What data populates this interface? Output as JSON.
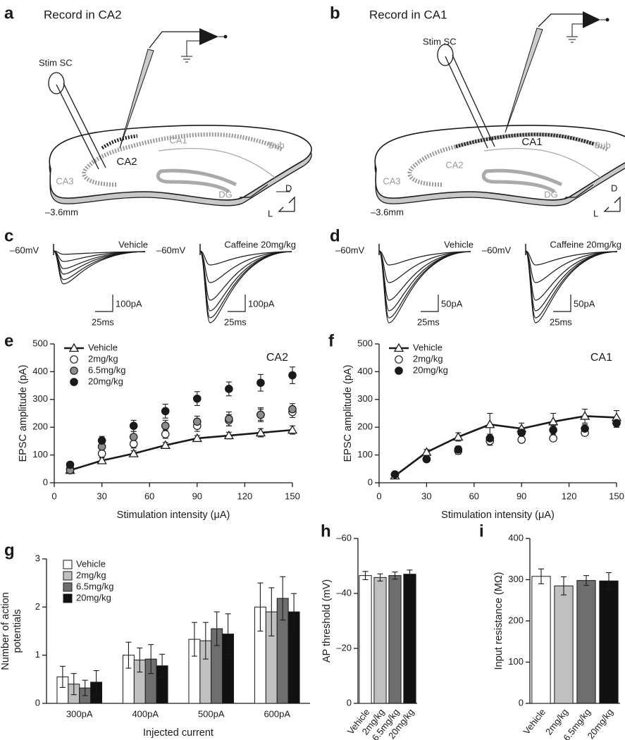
{
  "diagrams": [
    {
      "label": "a",
      "title": "Record in CA2",
      "stim": "Stim SC",
      "regions": [
        "CA1",
        "Sub",
        "CA2",
        "CA3",
        "DG"
      ],
      "axes": [
        "D",
        "L"
      ],
      "depth": "–3.6mm"
    },
    {
      "label": "b",
      "title": "Record in CA1",
      "stim": "Stim SC",
      "regions": [
        "CA1",
        "Sub",
        "CA2",
        "CA3",
        "DG"
      ],
      "axes": [
        "D",
        "L"
      ],
      "depth": "–3.6mm"
    }
  ],
  "traces": [
    {
      "label": "c",
      "left": {
        "potential": "–60mV",
        "condition": "Vehicle",
        "current_scale": "100pA",
        "time_scale": "25ms"
      },
      "right": {
        "potential": "–60mV",
        "condition": "Caffeine 20mg/kg",
        "current_scale": "100pA",
        "time_scale": "25ms"
      }
    },
    {
      "label": "d",
      "left": {
        "potential": "–60mV",
        "condition": "Vehicle",
        "current_scale": "50pA",
        "time_scale": "25ms"
      },
      "right": {
        "potential": "–60mV",
        "condition": "Caffeine 20mg/kg",
        "current_scale": "50pA",
        "time_scale": "25ms"
      }
    }
  ],
  "chart_data": [
    {
      "type": "scatter",
      "label": "e",
      "annotation": "CA2",
      "xlabel": "Stimulation intensity (μA)",
      "ylabel": "EPSC amplitude (pA)",
      "x": [
        10,
        30,
        50,
        70,
        90,
        110,
        130,
        150
      ],
      "xlim": [
        0,
        150
      ],
      "xticks": [
        0,
        30,
        60,
        90,
        120,
        150
      ],
      "ylim": [
        0,
        500
      ],
      "yticks": [
        0,
        100,
        200,
        300,
        400,
        500
      ],
      "series": [
        {
          "name": "Vehicle",
          "marker": "triangle",
          "color": "#ffffff",
          "line": true,
          "values": [
            45,
            80,
            105,
            135,
            160,
            170,
            180,
            190
          ],
          "errors": [
            5,
            10,
            10,
            10,
            10,
            12,
            15,
            15
          ]
        },
        {
          "name": "2mg/kg",
          "marker": "circle",
          "color": "#ffffff",
          "values": [
            50,
            105,
            140,
            175,
            205,
            225,
            245,
            255
          ],
          "errors": [
            5,
            15,
            15,
            15,
            20,
            20,
            20,
            20
          ]
        },
        {
          "name": "6.5mg/kg",
          "marker": "circle",
          "color": "#8c8c8c",
          "values": [
            45,
            130,
            165,
            205,
            220,
            230,
            245,
            265
          ],
          "errors": [
            5,
            15,
            20,
            20,
            20,
            25,
            25,
            20
          ]
        },
        {
          "name": "20mg/kg",
          "marker": "circle",
          "color": "#1a1a1a",
          "values": [
            65,
            152,
            205,
            258,
            303,
            338,
            360,
            387
          ],
          "errors": [
            5,
            15,
            20,
            25,
            25,
            25,
            30,
            30
          ]
        }
      ]
    },
    {
      "type": "scatter",
      "label": "f",
      "annotation": "CA1",
      "xlabel": "Stimulation intensity (μA)",
      "ylabel": "EPSC amplitude (pA)",
      "x": [
        10,
        30,
        50,
        70,
        90,
        110,
        130,
        150
      ],
      "xlim": [
        0,
        150
      ],
      "xticks": [
        0,
        30,
        60,
        90,
        120,
        150
      ],
      "ylim": [
        0,
        500
      ],
      "yticks": [
        0,
        100,
        200,
        300,
        400,
        500
      ],
      "series": [
        {
          "name": "Vehicle",
          "marker": "triangle",
          "color": "#ffffff",
          "line": true,
          "values": [
            25,
            110,
            165,
            210,
            195,
            220,
            240,
            235
          ],
          "errors": [
            8,
            10,
            15,
            40,
            20,
            30,
            25,
            25
          ]
        },
        {
          "name": "2mg/kg",
          "marker": "circle",
          "color": "#ffffff",
          "values": [
            30,
            85,
            115,
            150,
            155,
            160,
            180,
            215
          ],
          "errors": [
            5,
            10,
            12,
            15,
            10,
            10,
            10,
            15
          ]
        },
        {
          "name": "20mg/kg",
          "marker": "circle",
          "color": "#1a1a1a",
          "values": [
            30,
            85,
            120,
            160,
            180,
            190,
            195,
            215
          ],
          "errors": [
            5,
            10,
            12,
            15,
            15,
            15,
            15,
            15
          ]
        }
      ]
    },
    {
      "type": "bar",
      "label": "g",
      "xlabel": "Injected current",
      "ylabel": "Number of action potentials",
      "categories": [
        "300pA",
        "400pA",
        "500pA",
        "600pA"
      ],
      "ylim": [
        0,
        3
      ],
      "yticks": [
        0,
        1,
        2,
        3
      ],
      "series": [
        {
          "name": "Vehicle",
          "color": "#ffffff",
          "values": [
            0.55,
            1.0,
            1.33,
            2.0
          ],
          "errors": [
            0.22,
            0.27,
            0.35,
            0.5
          ]
        },
        {
          "name": "2mg/kg",
          "color": "#c0c0c0",
          "values": [
            0.4,
            0.9,
            1.3,
            1.9
          ],
          "errors": [
            0.22,
            0.25,
            0.38,
            0.5
          ]
        },
        {
          "name": "6.5mg/kg",
          "color": "#6e6e6e",
          "values": [
            0.32,
            0.92,
            1.55,
            2.18
          ],
          "errors": [
            0.16,
            0.3,
            0.35,
            0.45
          ]
        },
        {
          "name": "20mg/kg",
          "color": "#111111",
          "values": [
            0.44,
            0.78,
            1.44,
            1.9
          ],
          "errors": [
            0.24,
            0.24,
            0.42,
            0.38
          ]
        }
      ]
    },
    {
      "type": "bar",
      "label": "h",
      "ylabel": "AP threshold (mV)",
      "categories": [
        "Vehicle",
        "2mg/kg",
        "6.5mg/kg",
        "20mg/kg"
      ],
      "colors": [
        "#ffffff",
        "#c0c0c0",
        "#6e6e6e",
        "#111111"
      ],
      "values": [
        -46.5,
        -45.8,
        -46.5,
        -47
      ],
      "errors": [
        1.5,
        1.3,
        1.3,
        1.5
      ],
      "ylim": [
        0,
        -60
      ],
      "yticks": [
        {
          "value": -60,
          "label": "–60"
        },
        {
          "value": -40,
          "label": "–40"
        },
        {
          "value": -20,
          "label": "–20"
        },
        0
      ]
    },
    {
      "type": "bar",
      "label": "i",
      "ylabel": "Input resistance (MΩ)",
      "categories": [
        "Vehicle",
        "2mg/kg",
        "6.5mg/kg",
        "20mg/kg"
      ],
      "colors": [
        "#ffffff",
        "#c0c0c0",
        "#6e6e6e",
        "#111111"
      ],
      "values": [
        308,
        285,
        298,
        297
      ],
      "errors": [
        18,
        22,
        12,
        20
      ],
      "ylim": [
        0,
        400
      ],
      "yticks": [
        0,
        100,
        200,
        300,
        400
      ]
    }
  ]
}
